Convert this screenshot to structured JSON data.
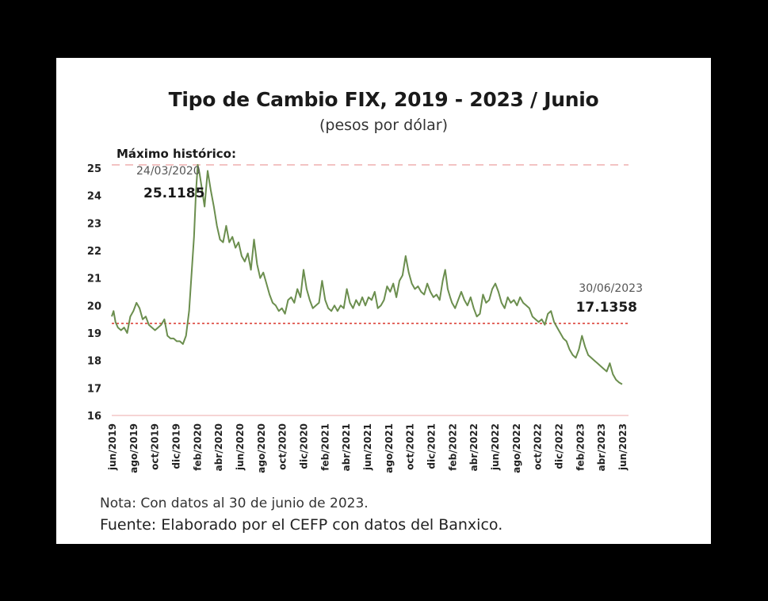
{
  "chart_data": {
    "type": "line",
    "title": "Tipo de Cambio FIX, 2019 - 2023 / Junio",
    "subtitle": "(pesos por dólar)",
    "ylim": [
      16,
      25
    ],
    "yticks": [
      "16",
      "17",
      "18",
      "19",
      "20",
      "21",
      "22",
      "23",
      "24",
      "25"
    ],
    "xticks": [
      "jun/2019",
      "ago/2019",
      "oct/2019",
      "dic/2019",
      "feb/2020",
      "abr/2020",
      "jun/2020",
      "ago/2020",
      "oct/2020",
      "dic/2020",
      "feb/2021",
      "abr/2021",
      "jun/2021",
      "ago/2021",
      "oct/2021",
      "dic/2021",
      "feb/2022",
      "abr/2022",
      "jun/2022",
      "ago/2022",
      "oct/2022",
      "dic/2022",
      "feb/2023",
      "abr/2023",
      "jun/2023"
    ],
    "series": [
      {
        "color": "#6b8e4e",
        "points": [
          [
            0,
            19.6
          ],
          [
            0.3,
            19.8
          ],
          [
            0.6,
            19.4
          ],
          [
            1.0,
            19.2
          ],
          [
            1.5,
            19.1
          ],
          [
            2.0,
            19.2
          ],
          [
            2.5,
            19.0
          ],
          [
            3.0,
            19.6
          ],
          [
            3.5,
            19.8
          ],
          [
            4.0,
            20.1
          ],
          [
            4.5,
            19.9
          ],
          [
            5.0,
            19.5
          ],
          [
            5.5,
            19.6
          ],
          [
            6.0,
            19.3
          ],
          [
            6.5,
            19.2
          ],
          [
            7.0,
            19.1
          ],
          [
            7.5,
            19.2
          ],
          [
            8.0,
            19.3
          ],
          [
            8.5,
            19.5
          ],
          [
            9.0,
            18.9
          ],
          [
            9.5,
            18.8
          ],
          [
            10.0,
            18.8
          ],
          [
            10.5,
            18.7
          ],
          [
            11.0,
            18.7
          ],
          [
            11.5,
            18.6
          ],
          [
            12.0,
            18.9
          ],
          [
            12.5,
            19.8
          ],
          [
            13.0,
            21.5
          ],
          [
            13.3,
            22.5
          ],
          [
            13.6,
            24.1
          ],
          [
            13.9,
            25.1185
          ],
          [
            14.2,
            24.8
          ],
          [
            14.6,
            24.2
          ],
          [
            15.0,
            23.6
          ],
          [
            15.5,
            24.9
          ],
          [
            16.0,
            24.2
          ],
          [
            16.5,
            23.6
          ],
          [
            17.0,
            22.9
          ],
          [
            17.5,
            22.4
          ],
          [
            18.0,
            22.3
          ],
          [
            18.5,
            22.9
          ],
          [
            19.0,
            22.3
          ],
          [
            19.5,
            22.5
          ],
          [
            20.0,
            22.1
          ],
          [
            20.5,
            22.3
          ],
          [
            21.0,
            21.8
          ],
          [
            21.5,
            21.6
          ],
          [
            22.0,
            21.9
          ],
          [
            22.5,
            21.3
          ],
          [
            23.0,
            22.4
          ],
          [
            23.5,
            21.5
          ],
          [
            24.0,
            21.0
          ],
          [
            24.5,
            21.2
          ],
          [
            25.0,
            20.8
          ],
          [
            25.5,
            20.4
          ],
          [
            26.0,
            20.1
          ],
          [
            26.5,
            20.0
          ],
          [
            27.0,
            19.8
          ],
          [
            27.5,
            19.9
          ],
          [
            28.0,
            19.7
          ],
          [
            28.5,
            20.2
          ],
          [
            29.0,
            20.3
          ],
          [
            29.5,
            20.1
          ],
          [
            30.0,
            20.6
          ],
          [
            30.5,
            20.3
          ],
          [
            31.0,
            21.3
          ],
          [
            31.5,
            20.6
          ],
          [
            32.0,
            20.2
          ],
          [
            32.5,
            19.9
          ],
          [
            33.0,
            20.0
          ],
          [
            33.5,
            20.1
          ],
          [
            34.0,
            20.9
          ],
          [
            34.5,
            20.2
          ],
          [
            35.0,
            19.9
          ],
          [
            35.5,
            19.8
          ],
          [
            36.0,
            20.0
          ],
          [
            36.5,
            19.8
          ],
          [
            37.0,
            20.0
          ],
          [
            37.5,
            19.9
          ],
          [
            38.0,
            20.6
          ],
          [
            38.5,
            20.1
          ],
          [
            39.0,
            19.9
          ],
          [
            39.5,
            20.2
          ],
          [
            40.0,
            20.0
          ],
          [
            40.5,
            20.3
          ],
          [
            41.0,
            20.0
          ],
          [
            41.5,
            20.3
          ],
          [
            42.0,
            20.2
          ],
          [
            42.5,
            20.5
          ],
          [
            43.0,
            19.9
          ],
          [
            43.5,
            20.0
          ],
          [
            44.0,
            20.2
          ],
          [
            44.5,
            20.7
          ],
          [
            45.0,
            20.5
          ],
          [
            45.5,
            20.8
          ],
          [
            46.0,
            20.3
          ],
          [
            46.5,
            20.9
          ],
          [
            47.0,
            21.1
          ],
          [
            47.5,
            21.8
          ],
          [
            48.0,
            21.2
          ],
          [
            48.5,
            20.8
          ],
          [
            49.0,
            20.6
          ],
          [
            49.5,
            20.7
          ],
          [
            50.0,
            20.5
          ],
          [
            50.5,
            20.4
          ],
          [
            51.0,
            20.8
          ],
          [
            51.5,
            20.5
          ],
          [
            52.0,
            20.3
          ],
          [
            52.5,
            20.4
          ],
          [
            53.0,
            20.2
          ],
          [
            53.5,
            20.9
          ],
          [
            53.9,
            21.3
          ],
          [
            54.3,
            20.6
          ],
          [
            54.7,
            20.3
          ],
          [
            55.0,
            20.1
          ],
          [
            55.5,
            19.9
          ],
          [
            56.0,
            20.2
          ],
          [
            56.5,
            20.5
          ],
          [
            57.0,
            20.2
          ],
          [
            57.5,
            20.0
          ],
          [
            58.0,
            20.3
          ],
          [
            58.5,
            19.9
          ],
          [
            59.0,
            19.6
          ],
          [
            59.5,
            19.7
          ],
          [
            60.0,
            20.4
          ],
          [
            60.5,
            20.1
          ],
          [
            61.0,
            20.2
          ],
          [
            61.5,
            20.6
          ],
          [
            62.0,
            20.8
          ],
          [
            62.5,
            20.5
          ],
          [
            63.0,
            20.1
          ],
          [
            63.5,
            19.9
          ],
          [
            64.0,
            20.3
          ],
          [
            64.5,
            20.1
          ],
          [
            65.0,
            20.2
          ],
          [
            65.5,
            20.0
          ],
          [
            66.0,
            20.3
          ],
          [
            66.5,
            20.1
          ],
          [
            67.0,
            20.0
          ],
          [
            67.5,
            19.9
          ],
          [
            68.0,
            19.6
          ],
          [
            68.5,
            19.5
          ],
          [
            69.0,
            19.4
          ],
          [
            69.5,
            19.5
          ],
          [
            70.0,
            19.3
          ],
          [
            70.5,
            19.7
          ],
          [
            71.0,
            19.8
          ],
          [
            71.5,
            19.4
          ],
          [
            72.0,
            19.2
          ],
          [
            72.5,
            19.0
          ],
          [
            73.0,
            18.8
          ],
          [
            73.5,
            18.7
          ],
          [
            74.0,
            18.4
          ],
          [
            74.5,
            18.2
          ],
          [
            75.0,
            18.1
          ],
          [
            75.5,
            18.4
          ],
          [
            76.0,
            18.9
          ],
          [
            76.5,
            18.5
          ],
          [
            77.0,
            18.2
          ],
          [
            77.5,
            18.1
          ],
          [
            78.0,
            18.0
          ],
          [
            78.5,
            17.9
          ],
          [
            79.0,
            17.8
          ],
          [
            79.5,
            17.7
          ],
          [
            80.0,
            17.6
          ],
          [
            80.5,
            17.9
          ],
          [
            81.0,
            17.5
          ],
          [
            81.5,
            17.3
          ],
          [
            82.0,
            17.2
          ],
          [
            82.5,
            17.1358
          ]
        ]
      }
    ],
    "reference_lines": [
      {
        "y": 25.1185,
        "style": "dashed",
        "color": "#f0b6b6"
      },
      {
        "y": 19.35,
        "style": "dotted",
        "color": "#d9342b"
      },
      {
        "y": 16,
        "style": "solid",
        "color": "#f3c5c5"
      }
    ],
    "annotations": {
      "max_label": "Máximo histórico:",
      "max_date": "24/03/2020",
      "max_value": "25.1185",
      "last_date": "30/06/2023",
      "last_value": "17.1358"
    },
    "grid": false,
    "legend": "none"
  },
  "footer": {
    "note": "Nota: Con datos al 30 de junio de 2023.",
    "source": "Fuente: Elaborado por el CEFP con datos del Banxico."
  }
}
